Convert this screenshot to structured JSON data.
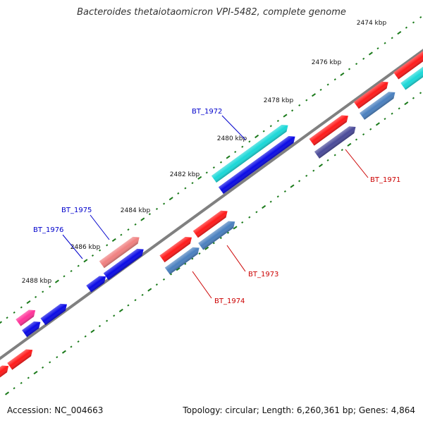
{
  "title": "Bacteroides thetaiotaomicron VPI-5482, complete genome",
  "footer": {
    "accession": "Accession: NC_004663",
    "summary": "Topology: circular; Length: 6,260,361 bp; Genes: 4,864"
  },
  "ticks": [
    "2474 kbp",
    "2476 kbp",
    "2478 kbp",
    "2480 kbp",
    "2482 kbp",
    "2484 kbp",
    "2486 kbp",
    "2488 kbp"
  ],
  "gene_labels": [
    {
      "name": "BT_1972",
      "color": "#0000cc"
    },
    {
      "name": "BT_1975",
      "color": "#0000cc"
    },
    {
      "name": "BT_1976",
      "color": "#0000cc"
    },
    {
      "name": "BT_1971",
      "color": "#cc0000"
    },
    {
      "name": "BT_1973",
      "color": "#cc0000"
    },
    {
      "name": "BT_1974",
      "color": "#cc0000"
    }
  ],
  "colors": {
    "red": "#ff1a1a",
    "blue": "#0a0ae6",
    "cyan": "#1ad8d8",
    "steel": "#4a80bf",
    "pink": "#f08080",
    "magenta": "#ff3399",
    "navy": "#4a4a99",
    "tick": "#1a7a1a",
    "backbone": "#808080"
  }
}
